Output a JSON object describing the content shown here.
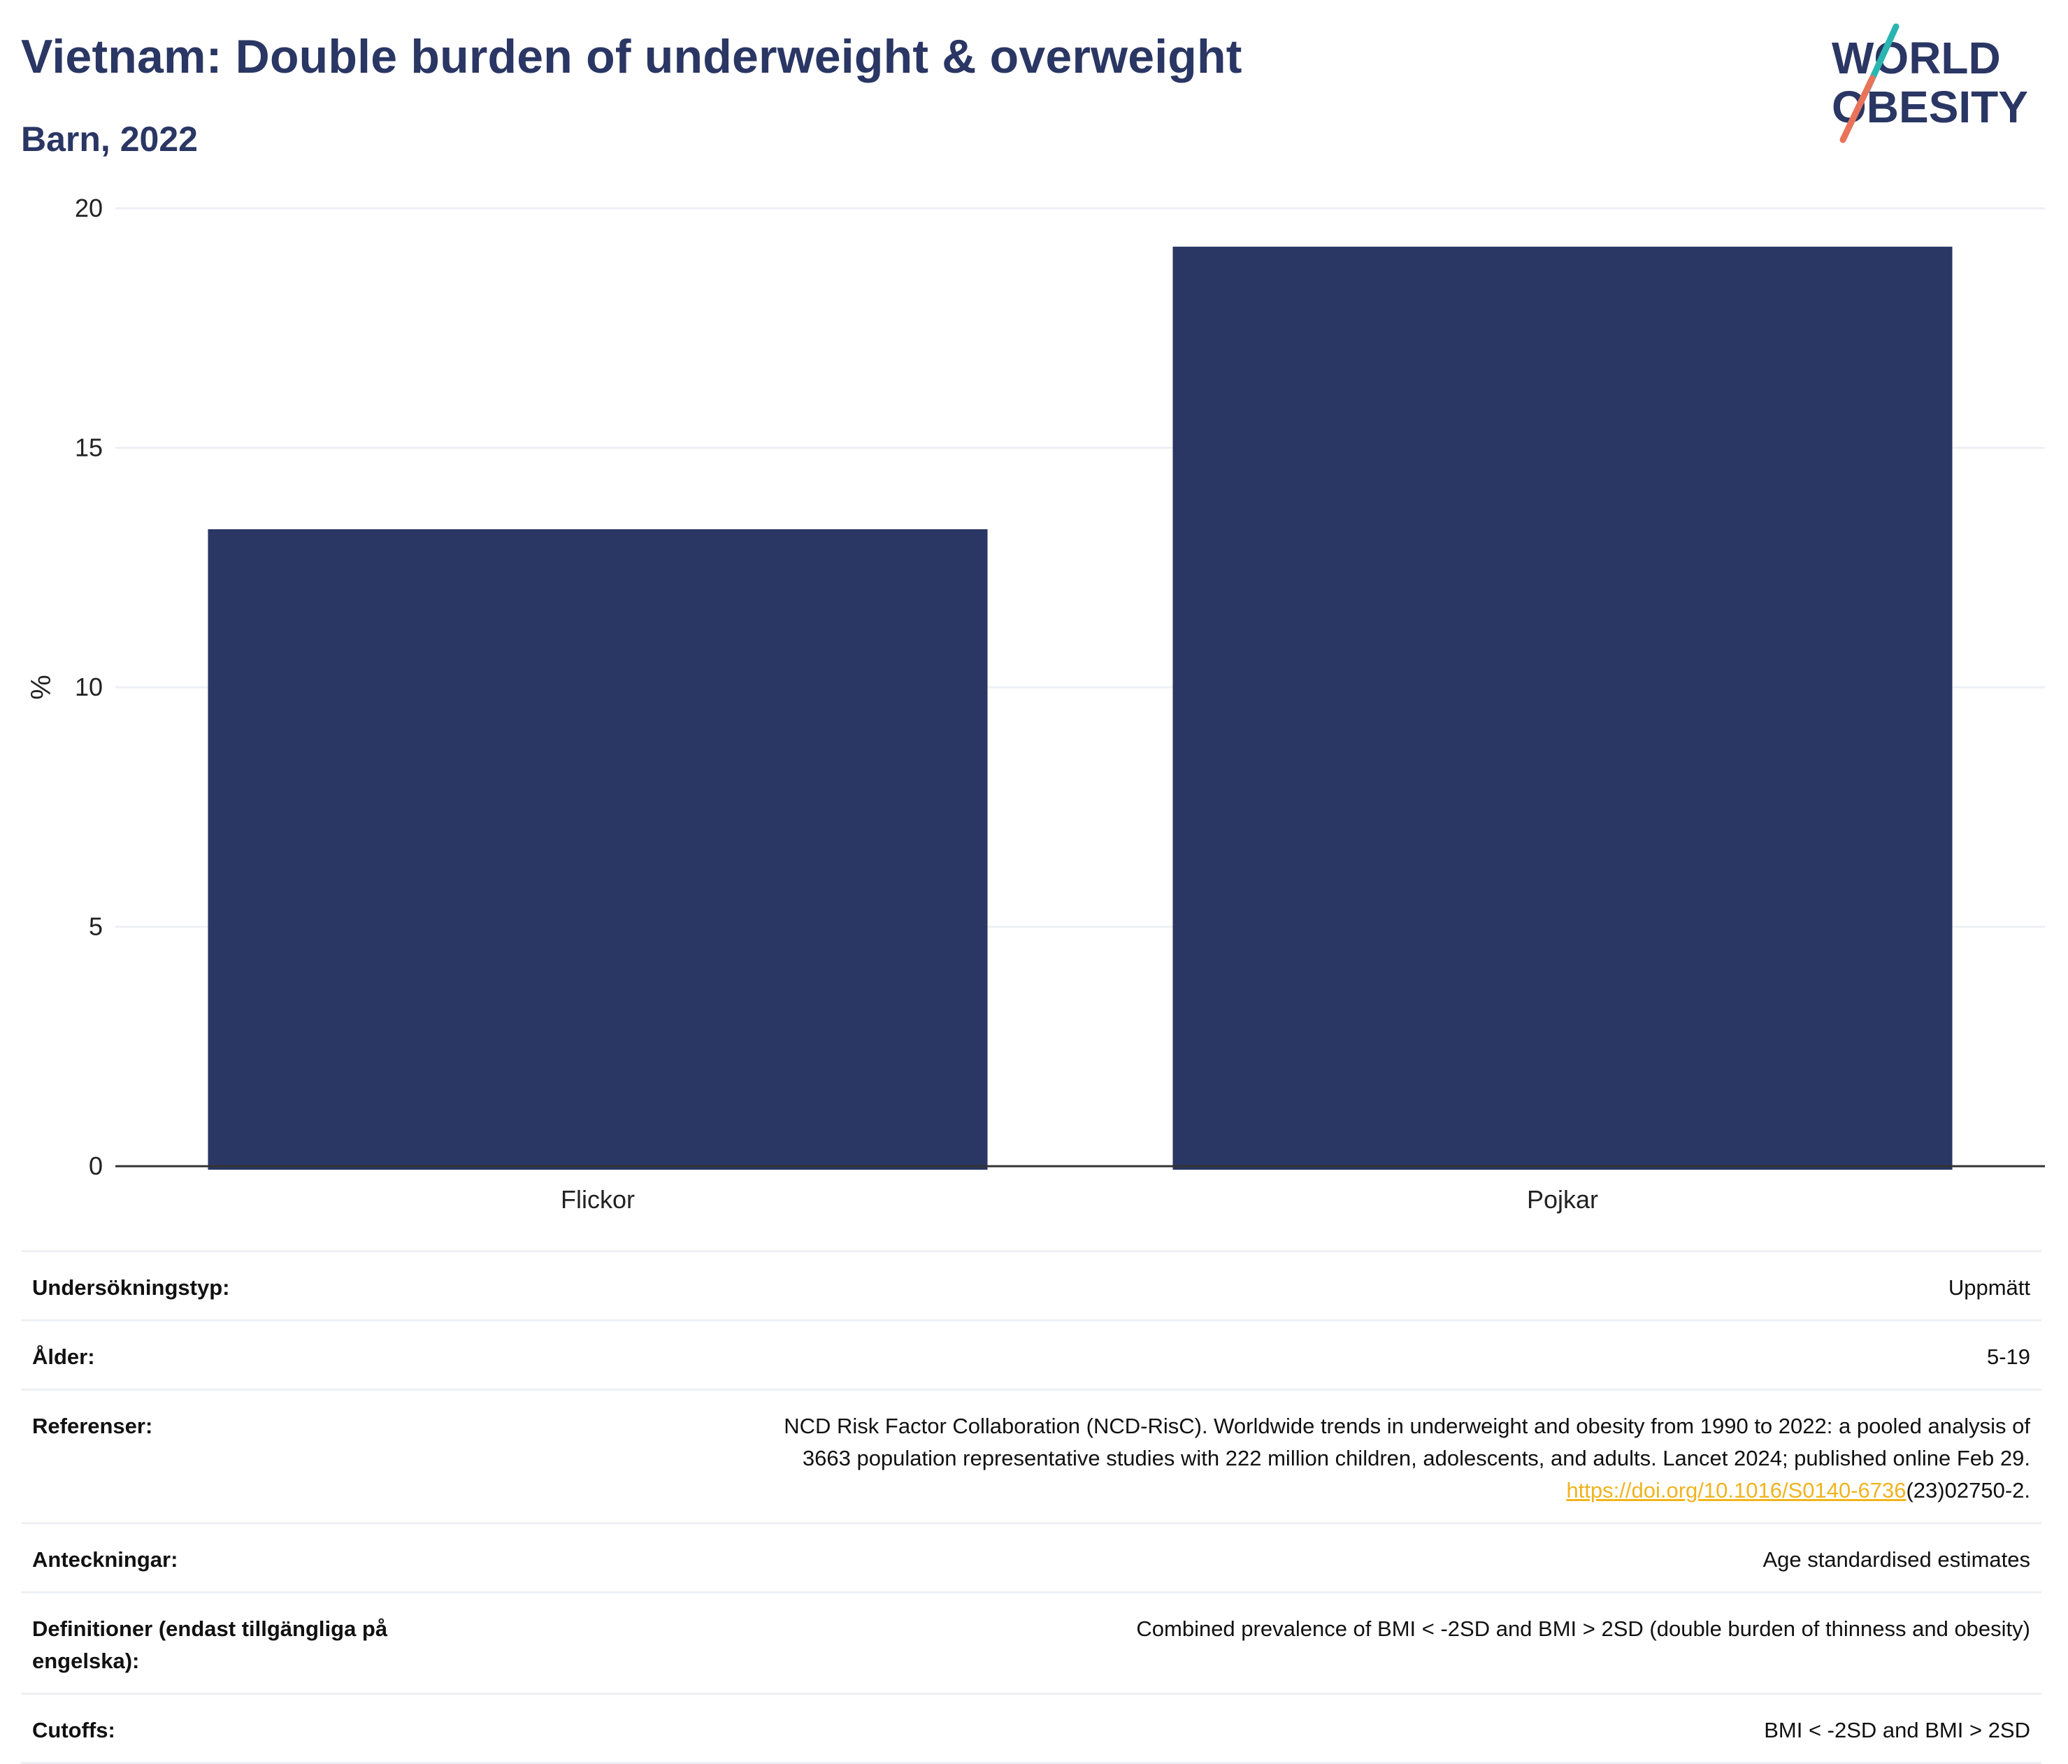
{
  "header": {
    "title": "Vietnam: Double burden of underweight & overweight",
    "subtitle": "Barn, 2022"
  },
  "logo": {
    "line1": "WORLD",
    "line2": "OBESITY",
    "colors": {
      "text": "#2a3663",
      "slash_top": "#2bb5b0",
      "slash_bottom": "#e8735a"
    }
  },
  "colors": {
    "bar": "#2a3663",
    "grid": "#eef0f5",
    "axis": "#333333",
    "link": "#f0b41e"
  },
  "chart_data": {
    "type": "bar",
    "categories": [
      "Flickor",
      "Pojkar"
    ],
    "values": [
      13.3,
      19.2
    ],
    "title": "Vietnam: Double burden of underweight & overweight",
    "subtitle": "Barn, 2022",
    "xlabel": "",
    "ylabel": "%",
    "ylim": [
      0,
      20
    ],
    "yticks": [
      0,
      5,
      10,
      15,
      20
    ],
    "grid": true,
    "legend": "none"
  },
  "meta": {
    "rows": [
      {
        "key": "Undersökningstyp:",
        "value": "Uppmätt"
      },
      {
        "key": "Ålder:",
        "value": "5-19"
      },
      {
        "key": "Referenser:",
        "value_lines": [
          "NCD Risk Factor Collaboration (NCD-RisC). Worldwide trends in underweight and obesity from 1990 to 2022: a pooled analysis of",
          "3663 population representative studies with 222 million children, adolescents, and adults. Lancet 2024; published online Feb 29."
        ],
        "link_text": "https://doi.org/10.1016/S0140-6736",
        "link_suffix": "(23)02750-2."
      },
      {
        "key": "Anteckningar:",
        "value": "Age standardised estimates"
      },
      {
        "key": "Definitioner (endast tillgängliga på engelska):",
        "value": "Combined prevalence of BMI < -2SD and BMI > 2SD (double burden of thinness and obesity)"
      },
      {
        "key": "Cutoffs:",
        "value": "BMI < -2SD and BMI > 2SD"
      }
    ]
  }
}
